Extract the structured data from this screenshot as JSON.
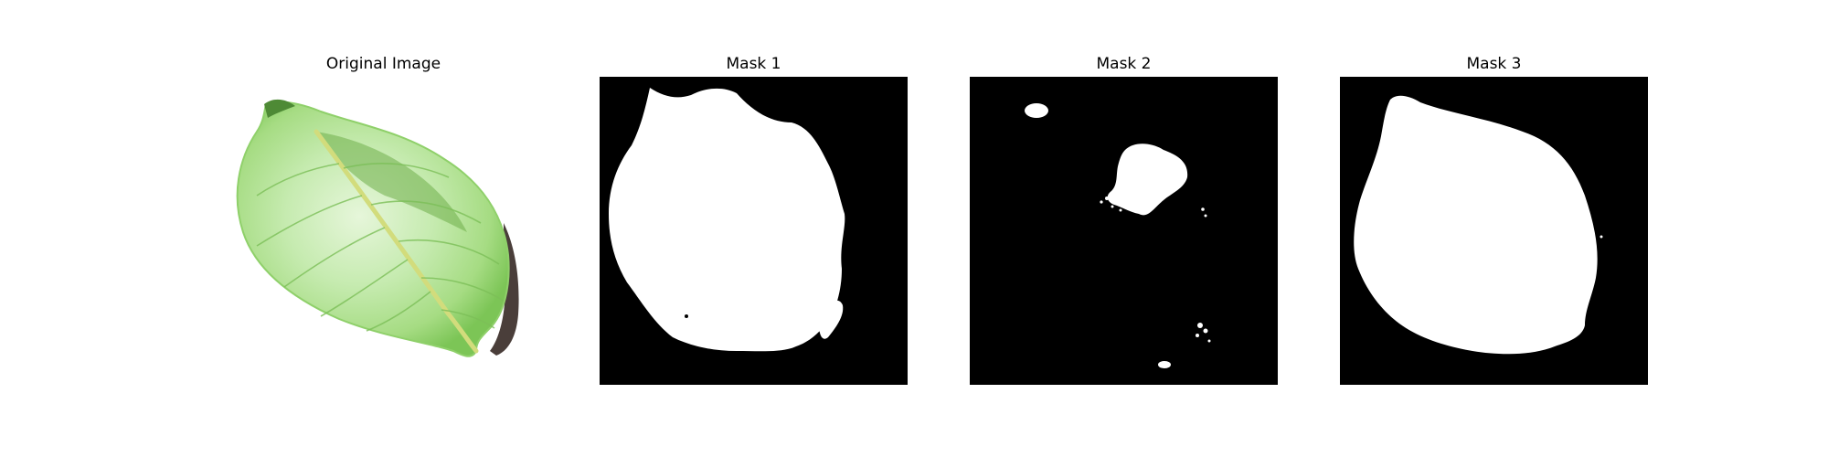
{
  "figure": {
    "panels": [
      {
        "title": "Original Image",
        "kind": "photo",
        "subject": "green-leaf"
      },
      {
        "title": "Mask 1",
        "kind": "binary-mask"
      },
      {
        "title": "Mask 2",
        "kind": "binary-mask"
      },
      {
        "title": "Mask 3",
        "kind": "binary-mask"
      }
    ]
  },
  "colors": {
    "background": "#ffffff",
    "mask_background": "#000000",
    "mask_foreground": "#ffffff",
    "leaf_light": "#c9ecb3",
    "leaf_mid": "#9bd477",
    "leaf_dark": "#5a9a3d",
    "leaf_vein": "#c8d87a",
    "shadow": "#2a1c18"
  }
}
